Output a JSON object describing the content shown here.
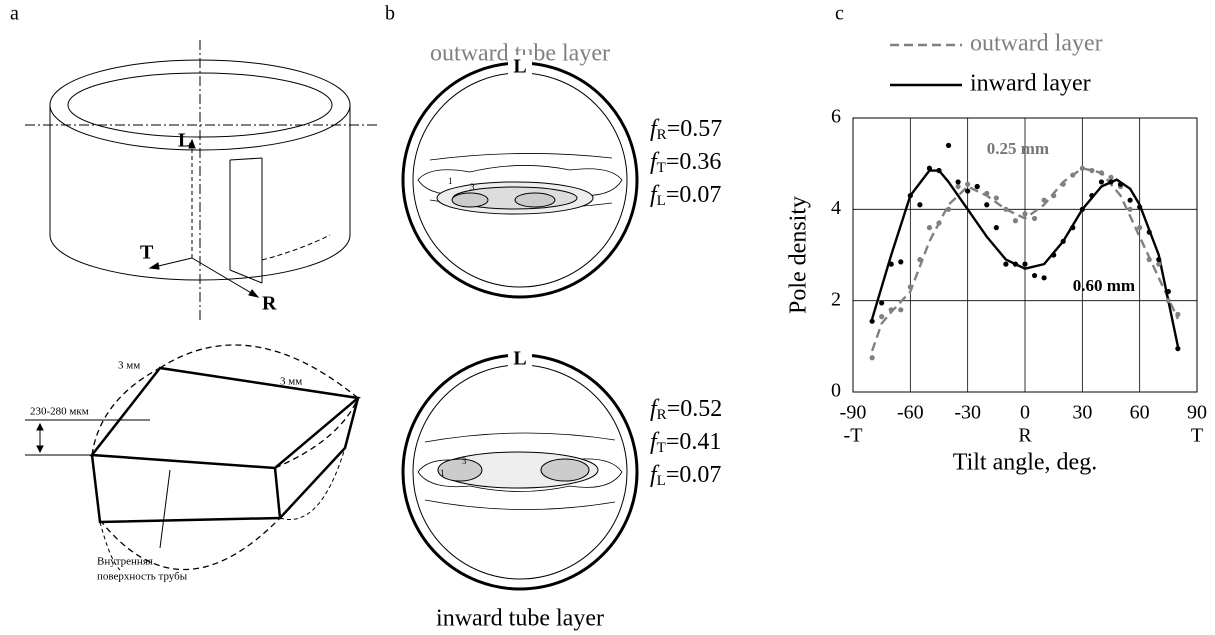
{
  "panel_a": {
    "label": "a",
    "axes": [
      "L",
      "T",
      "R"
    ],
    "dims": [
      "3 мм",
      "3 мм",
      "230-280 мкм"
    ],
    "note": [
      "Внутренняя",
      "поверхность трубы"
    ]
  },
  "panel_b": {
    "label": "b",
    "top_title": "outward tube layer",
    "bottom_title": "inward  tube layer",
    "pole_label": "L",
    "top_fractions": [
      [
        "f",
        "R",
        "=0.57"
      ],
      [
        "f",
        "T",
        "=0.36"
      ],
      [
        "f",
        "L",
        "=0.07"
      ]
    ],
    "bottom_fractions": [
      [
        "f",
        "R",
        "=0.52"
      ],
      [
        "f",
        "T",
        "=0.41"
      ],
      [
        "f",
        "L",
        "=0.07"
      ]
    ],
    "contour_labels": [
      "1",
      "3"
    ]
  },
  "chart_data": {
    "type": "scatter",
    "label": "c",
    "xlabel": "Tilt angle, deg.",
    "ylabel": "Pole density",
    "xlim": [
      -90,
      90
    ],
    "ylim": [
      0,
      6
    ],
    "xticks": [
      -90,
      -60,
      -30,
      0,
      30,
      60,
      90
    ],
    "yticks": [
      0,
      2,
      4,
      6
    ],
    "x_direction_labels": [
      {
        "value": -90,
        "label": "-T"
      },
      {
        "value": 0,
        "label": "R"
      },
      {
        "value": 90,
        "label": "T"
      }
    ],
    "grid": true,
    "annotations": [
      {
        "text": "0.25 mm",
        "x": -20,
        "y": 5.3,
        "color": "#777777"
      },
      {
        "text": "0.60 mm",
        "x": 25,
        "y": 2.3,
        "color": "#000000"
      }
    ],
    "series": [
      {
        "name": "outward layer",
        "color": "#808080",
        "style": "dashed",
        "x": [
          -80,
          -75,
          -70,
          -60,
          -50,
          -40,
          -30,
          -20,
          -10,
          0,
          10,
          20,
          30,
          40,
          50,
          60,
          70,
          80
        ],
        "values": [
          0.9,
          1.5,
          1.75,
          2.2,
          3.3,
          4.1,
          4.5,
          4.3,
          4.0,
          3.8,
          4.1,
          4.6,
          4.9,
          4.8,
          4.3,
          3.4,
          2.5,
          1.6
        ]
      },
      {
        "name": "inward layer",
        "color": "#000000",
        "style": "solid",
        "x": [
          -80,
          -70,
          -60,
          -50,
          -45,
          -40,
          -30,
          -20,
          -10,
          0,
          10,
          20,
          30,
          40,
          48,
          55,
          60,
          70,
          80
        ],
        "values": [
          1.6,
          3.0,
          4.3,
          4.85,
          4.85,
          4.6,
          4.0,
          3.4,
          2.9,
          2.7,
          2.8,
          3.3,
          4.0,
          4.5,
          4.65,
          4.45,
          4.1,
          3.0,
          1.0
        ]
      },
      {
        "color": "#808080",
        "style": "points",
        "x": [
          -80,
          -75,
          -70,
          -65,
          -60,
          -55,
          -50,
          -45,
          -40,
          -35,
          -30,
          -25,
          -20,
          -15,
          -10,
          -5,
          0,
          5,
          10,
          15,
          20,
          25,
          30,
          35,
          40,
          45,
          50,
          55,
          60,
          65,
          70,
          75,
          80
        ],
        "values": [
          0.75,
          1.65,
          1.8,
          1.8,
          2.3,
          2.9,
          3.6,
          3.7,
          4.0,
          4.5,
          4.55,
          4.5,
          4.35,
          4.25,
          4.0,
          3.75,
          3.9,
          3.8,
          4.2,
          4.3,
          4.55,
          4.75,
          4.9,
          4.85,
          4.8,
          4.7,
          4.5,
          4.0,
          3.6,
          2.9,
          2.8,
          2.0,
          1.7
        ]
      },
      {
        "color": "#000000",
        "style": "points",
        "x": [
          -80,
          -75,
          -70,
          -65,
          -60,
          -55,
          -50,
          -45,
          -40,
          -35,
          -30,
          -25,
          -20,
          -15,
          -10,
          -5,
          0,
          5,
          10,
          15,
          20,
          25,
          30,
          35,
          40,
          45,
          50,
          55,
          60,
          65,
          70,
          75,
          80
        ],
        "values": [
          1.55,
          1.95,
          2.8,
          2.85,
          4.3,
          4.1,
          4.9,
          4.85,
          5.4,
          4.6,
          4.4,
          4.5,
          4.1,
          3.6,
          2.8,
          2.8,
          2.8,
          2.55,
          2.5,
          3.0,
          3.3,
          3.6,
          4.0,
          4.3,
          4.6,
          4.6,
          4.55,
          4.2,
          4.05,
          3.5,
          2.9,
          2.2,
          0.95
        ]
      }
    ]
  }
}
